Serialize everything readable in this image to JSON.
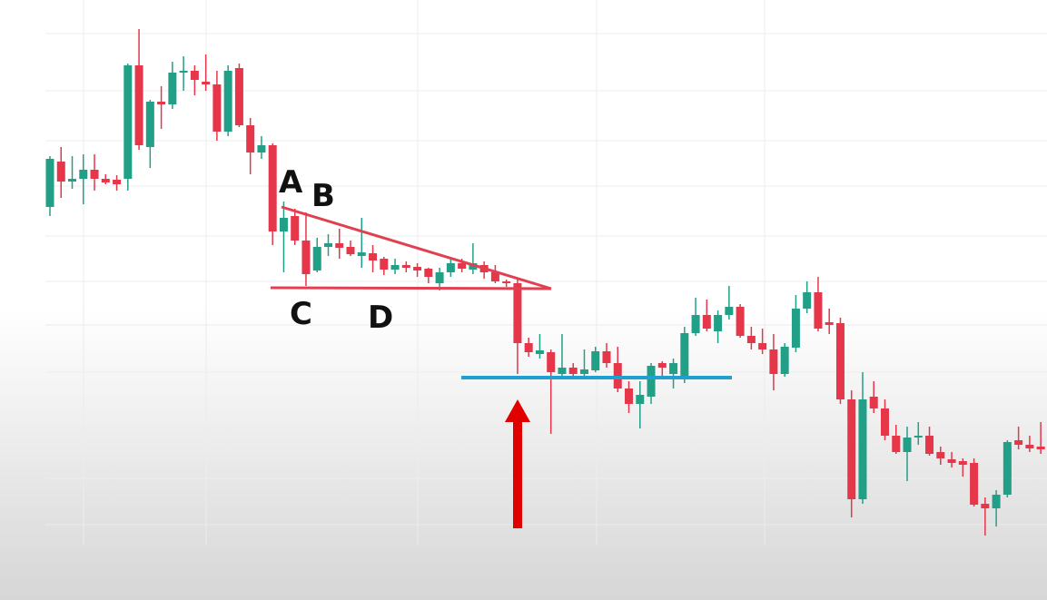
{
  "chart_data": {
    "type": "candlestick",
    "up_color": "#22a087",
    "down_color": "#e5364a",
    "ylim": [
      0,
      600
    ],
    "annotations": [
      "A",
      "B",
      "C",
      "D"
    ],
    "open": [
      372,
      422,
      400,
      403,
      413,
      403,
      402,
      403,
      528,
      438,
      488,
      485,
      520,
      522,
      510,
      507,
      455,
      525,
      462,
      432,
      440,
      345,
      362,
      335,
      302,
      328,
      332,
      328,
      318,
      321,
      315,
      303,
      308,
      306,
      304,
      288,
      300,
      310,
      303,
      308,
      300,
      290,
      288,
      222,
      210,
      212,
      188,
      195,
      188,
      192,
      213,
      200,
      172,
      155,
      163,
      200,
      188,
      182,
      233,
      253,
      235,
      253,
      262,
      230,
      222,
      215,
      188,
      217,
      260,
      278,
      245,
      244,
      160,
      50,
      163,
      150,
      120,
      102,
      118,
      120,
      102,
      94,
      92,
      90,
      45,
      40,
      55,
      115,
      110,
      108
    ],
    "high": [
      428,
      438,
      428,
      430,
      430,
      408,
      407,
      530,
      568,
      490,
      505,
      532,
      538,
      528,
      540,
      522,
      528,
      530,
      470,
      450,
      442,
      378,
      370,
      366,
      338,
      342,
      348,
      335,
      360,
      330,
      317,
      315,
      312,
      310,
      305,
      305,
      315,
      315,
      332,
      312,
      308,
      292,
      292,
      228,
      232,
      215,
      232,
      200,
      215,
      218,
      222,
      218,
      180,
      180,
      200,
      202,
      205,
      240,
      272,
      270,
      258,
      285,
      265,
      240,
      238,
      232,
      222,
      275,
      290,
      295,
      260,
      250,
      170,
      190,
      180,
      160,
      132,
      130,
      135,
      130,
      108,
      102,
      95,
      95,
      52,
      60,
      115,
      130,
      120,
      135
    ],
    "low": [
      362,
      382,
      392,
      375,
      390,
      397,
      390,
      390,
      435,
      415,
      458,
      480,
      500,
      495,
      500,
      445,
      450,
      460,
      408,
      425,
      330,
      300,
      330,
      285,
      300,
      318,
      315,
      318,
      305,
      300,
      297,
      298,
      300,
      295,
      288,
      280,
      295,
      300,
      298,
      293,
      288,
      284,
      188,
      207,
      205,
      122,
      185,
      185,
      185,
      190,
      195,
      168,
      145,
      128,
      155,
      185,
      172,
      178,
      230,
      235,
      222,
      248,
      228,
      215,
      210,
      170,
      185,
      212,
      255,
      235,
      232,
      155,
      30,
      45,
      145,
      115,
      100,
      70,
      110,
      98,
      88,
      85,
      75,
      42,
      10,
      20,
      52,
      105,
      102,
      100
    ],
    "close": [
      425,
      400,
      403,
      413,
      403,
      399,
      397,
      528,
      440,
      488,
      485,
      520,
      522,
      512,
      507,
      455,
      522,
      462,
      432,
      440,
      345,
      360,
      335,
      298,
      328,
      332,
      327,
      320,
      322,
      313,
      303,
      308,
      305,
      302,
      295,
      300,
      310,
      304,
      310,
      300,
      290,
      288,
      222,
      212,
      214,
      190,
      195,
      188,
      193,
      213,
      200,
      172,
      155,
      165,
      197,
      195,
      200,
      233,
      253,
      238,
      253,
      262,
      230,
      222,
      215,
      188,
      218,
      260,
      278,
      238,
      242,
      160,
      50,
      160,
      150,
      120,
      102,
      118,
      120,
      100,
      95,
      90,
      88,
      44,
      40,
      55,
      113,
      110,
      106,
      105
    ]
  }
}
